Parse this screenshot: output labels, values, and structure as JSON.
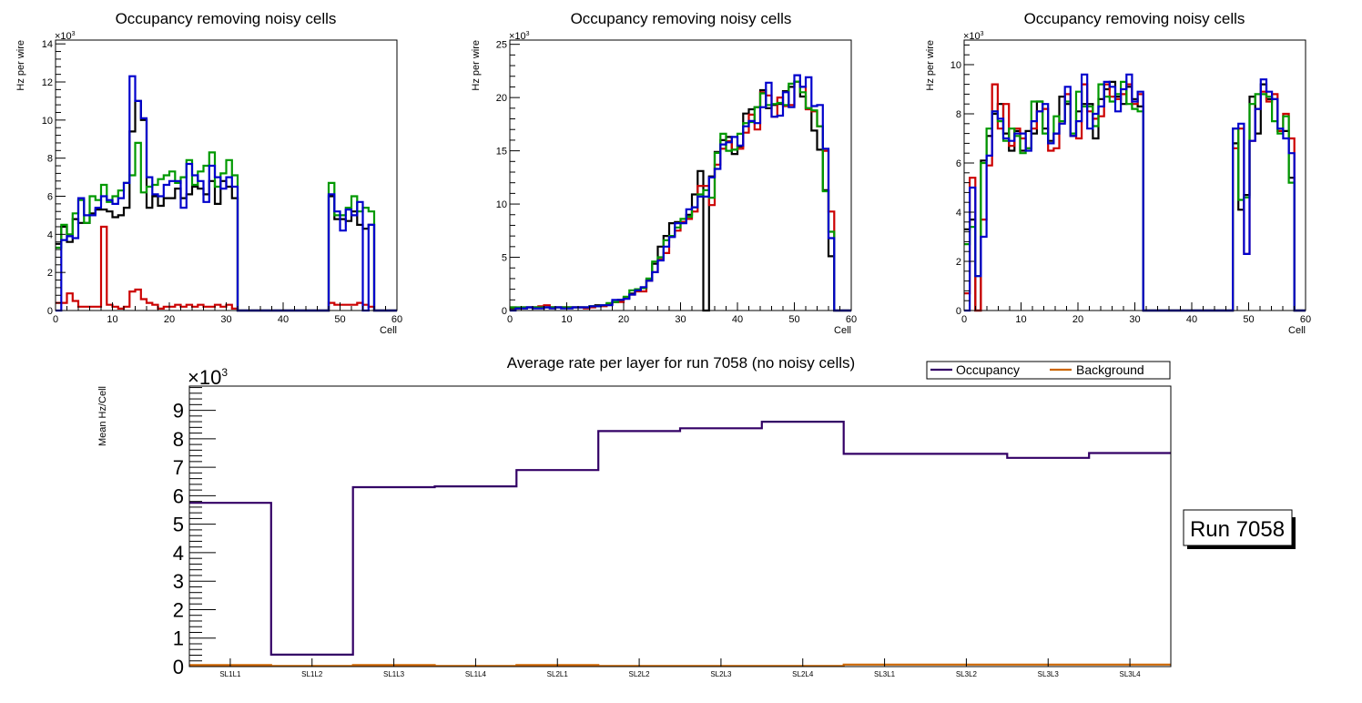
{
  "chart_data": [
    {
      "type": "line",
      "subtype": "step-histogram",
      "title": "Occupancy removing noisy cells",
      "xlabel": "Cell",
      "ylabel": "Hz per wire",
      "y_multiplier": "×10^3",
      "xlim": [
        0,
        60
      ],
      "ylim": [
        0,
        14.2
      ],
      "xticks": [
        0,
        10,
        20,
        30,
        40,
        50,
        60
      ],
      "yticks": [
        0,
        2,
        4,
        6,
        8,
        10,
        12,
        14
      ],
      "series": [
        {
          "name": "black",
          "color": "#000000",
          "values": [
            3.5,
            4.4,
            3.6,
            4.8,
            4.6,
            4.6,
            5.1,
            5.3,
            5.3,
            5.2,
            4.9,
            5.0,
            5.4,
            9.4,
            11.0,
            10.0,
            5.4,
            6.0,
            5.5,
            5.9,
            5.9,
            6.4,
            5.9,
            6.1,
            6.5,
            6.4,
            6.1,
            6.8,
            5.6,
            6.8,
            6.5,
            5.9,
            0,
            0,
            0,
            0,
            0,
            0,
            0,
            0,
            0,
            0,
            0,
            0,
            0,
            0,
            0,
            0,
            6.0,
            4.8,
            4.8,
            4.7,
            5.2,
            4.5,
            4.3,
            4.5,
            0,
            0,
            0,
            0
          ]
        },
        {
          "name": "red",
          "color": "#cc0000",
          "values": [
            0.4,
            0.4,
            0.9,
            0.5,
            0.2,
            0.2,
            0.2,
            0.2,
            4.4,
            0.3,
            0.2,
            0.1,
            0.2,
            1.0,
            1.1,
            0.6,
            0.4,
            0.3,
            0.1,
            0.2,
            0.2,
            0.3,
            0.2,
            0.3,
            0.2,
            0.3,
            0.2,
            0.2,
            0.3,
            0.2,
            0.3,
            0.1,
            0,
            0,
            0,
            0,
            0,
            0,
            0,
            0,
            0,
            0,
            0,
            0,
            0,
            0,
            0,
            0,
            0.4,
            0.3,
            0.3,
            0.3,
            0.3,
            0.4,
            0.3,
            0.2,
            0,
            0,
            0,
            0
          ]
        },
        {
          "name": "green",
          "color": "#009900",
          "values": [
            3.3,
            4.5,
            4.0,
            5.1,
            5.8,
            4.6,
            6.0,
            5.8,
            6.6,
            5.7,
            6.0,
            6.3,
            6.7,
            7.1,
            8.8,
            6.2,
            6.5,
            6.6,
            6.9,
            7.1,
            7.3,
            6.7,
            7.0,
            7.9,
            6.6,
            7.3,
            7.6,
            8.3,
            6.5,
            7.2,
            7.9,
            7.1,
            0,
            0,
            0,
            0,
            0,
            0,
            0,
            0,
            0,
            0,
            0,
            0,
            0,
            0,
            0,
            0,
            6.7,
            5.0,
            5.0,
            5.4,
            6.0,
            5.2,
            5.4,
            5.2,
            0,
            0,
            0,
            0
          ]
        },
        {
          "name": "blue",
          "color": "#0000cc",
          "values": [
            0,
            3.7,
            3.9,
            3.8,
            5.9,
            5.0,
            5.0,
            5.4,
            6.0,
            5.8,
            5.6,
            5.9,
            6.7,
            12.3,
            11.0,
            10.1,
            7.0,
            6.1,
            6.0,
            6.6,
            6.8,
            6.8,
            5.4,
            7.7,
            7.1,
            6.8,
            5.7,
            7.6,
            7.0,
            6.4,
            7.0,
            6.5,
            0,
            0,
            0,
            0,
            0,
            0,
            0,
            0,
            0,
            0,
            0,
            0,
            0,
            0,
            0,
            0,
            6.1,
            5.2,
            4.2,
            5.3,
            5.0,
            5.7,
            0,
            4.5,
            0,
            0,
            0,
            0
          ]
        }
      ]
    },
    {
      "type": "line",
      "subtype": "step-histogram",
      "title": "Occupancy removing noisy cells",
      "xlabel": "Cell",
      "ylabel": "Hz per wire",
      "y_multiplier": "×10^3",
      "xlim": [
        0,
        60
      ],
      "ylim": [
        0,
        25.4
      ],
      "xticks": [
        0,
        10,
        20,
        30,
        40,
        50,
        60
      ],
      "yticks": [
        0,
        5,
        10,
        15,
        20,
        25
      ],
      "series": [
        {
          "name": "black",
          "color": "#000000",
          "values": [
            0.2,
            0.2,
            0.2,
            0.3,
            0.3,
            0.3,
            0.3,
            0.3,
            0.3,
            0.3,
            0.3,
            0.3,
            0.3,
            0.3,
            0.4,
            0.5,
            0.5,
            0.6,
            0.8,
            1.0,
            1.2,
            1.6,
            1.9,
            2.1,
            2.9,
            4.4,
            6.0,
            7.0,
            8.2,
            8.3,
            8.3,
            9.0,
            10.9,
            13.1,
            0,
            12.6,
            14.9,
            16.0,
            16.3,
            14.7,
            15.4,
            18.5,
            18.9,
            19.1,
            20.7,
            19.0,
            19.3,
            19.4,
            20.6,
            21.0,
            21.5,
            20.1,
            19.0,
            16.9,
            15.1,
            11.3,
            5.1,
            0,
            0,
            0
          ]
        },
        {
          "name": "red",
          "color": "#cc0000",
          "values": [
            0.3,
            0.2,
            0.3,
            0.3,
            0.3,
            0.4,
            0.5,
            0.3,
            0.3,
            0.3,
            0.3,
            0.3,
            0.3,
            0.2,
            0.3,
            0.4,
            0.4,
            0.6,
            0.8,
            0.8,
            1.2,
            1.5,
            1.8,
            1.8,
            2.8,
            3.6,
            4.8,
            5.4,
            7.0,
            7.5,
            8.3,
            8.6,
            9.3,
            11.7,
            11.7,
            9.9,
            13.7,
            15.2,
            15.9,
            15.1,
            15.2,
            16.7,
            18.4,
            17.0,
            20.5,
            20.2,
            18.2,
            20.0,
            19.2,
            19.3,
            21.5,
            21.0,
            18.9,
            18.7,
            17.3,
            15.0,
            9.3,
            0,
            0,
            0
          ]
        },
        {
          "name": "green",
          "color": "#009900",
          "values": [
            0.3,
            0.3,
            0.3,
            0.3,
            0.3,
            0.3,
            0.3,
            0.3,
            0.3,
            0.3,
            0.3,
            0.3,
            0.3,
            0.3,
            0.4,
            0.4,
            0.5,
            0.7,
            0.8,
            1.0,
            1.3,
            1.9,
            2.0,
            2.1,
            3.0,
            4.6,
            5.0,
            6.6,
            7.0,
            7.8,
            8.6,
            8.8,
            9.7,
            10.9,
            11.3,
            10.6,
            14.8,
            16.6,
            15.0,
            15.1,
            16.6,
            17.6,
            17.7,
            19.1,
            20.4,
            19.3,
            19.4,
            19.5,
            19.3,
            21.3,
            21.5,
            20.5,
            19.0,
            18.8,
            17.3,
            11.2,
            7.4,
            0,
            0,
            0
          ]
        },
        {
          "name": "blue",
          "color": "#0000cc",
          "values": [
            0,
            0.2,
            0.2,
            0.3,
            0.2,
            0.2,
            0.3,
            0.2,
            0.3,
            0.2,
            0.2,
            0.3,
            0.3,
            0.3,
            0.4,
            0.4,
            0.5,
            0.5,
            1.0,
            1.0,
            1.1,
            1.5,
            1.9,
            2.2,
            2.8,
            3.6,
            4.7,
            6.0,
            6.9,
            8.2,
            8.2,
            9.5,
            9.7,
            10.7,
            10.7,
            12.5,
            13.3,
            15.6,
            15.8,
            16.3,
            15.5,
            17.3,
            17.8,
            17.6,
            19.1,
            21.4,
            18.2,
            18.3,
            20.5,
            19.1,
            22.1,
            21.0,
            21.9,
            19.2,
            19.3,
            15.2,
            6.8,
            0,
            0,
            0
          ]
        }
      ]
    },
    {
      "type": "line",
      "subtype": "step-histogram",
      "title": "Occupancy removing noisy cells",
      "xlabel": "Cell",
      "ylabel": "Hz per wire",
      "y_multiplier": "×10^3",
      "xlim": [
        0,
        60
      ],
      "ylim": [
        0,
        11.0
      ],
      "xticks": [
        0,
        10,
        20,
        30,
        40,
        50,
        60
      ],
      "yticks": [
        0,
        2,
        4,
        6,
        8,
        10
      ],
      "series": [
        {
          "name": "black",
          "color": "#000000",
          "values": [
            3.3,
            3.7,
            0,
            6.1,
            7.1,
            8.0,
            8.4,
            7.2,
            6.5,
            7.3,
            6.5,
            7.3,
            7.2,
            8.5,
            7.4,
            6.9,
            7.2,
            8.7,
            8.4,
            7.1,
            8.1,
            8.4,
            8.4,
            7.0,
            8.6,
            9.0,
            9.3,
            8.7,
            8.4,
            9.1,
            8.6,
            8.3,
            0,
            0,
            0,
            0,
            0,
            0,
            0,
            0,
            0,
            0,
            0,
            0,
            0,
            0,
            0,
            0,
            6.8,
            4.1,
            4.7,
            8.7,
            7.2,
            9.2,
            8.6,
            8.6,
            7.3,
            7.3,
            5.4,
            0,
            0
          ]
        },
        {
          "name": "red",
          "color": "#cc0000",
          "values": [
            0.7,
            5.4,
            0,
            3.7,
            5.9,
            9.2,
            7.4,
            8.4,
            6.7,
            7.4,
            7.0,
            6.6,
            7.4,
            8.1,
            8.2,
            6.5,
            6.6,
            7.7,
            8.8,
            7.1,
            7.0,
            9.2,
            8.1,
            7.8,
            7.9,
            9.2,
            8.7,
            8.6,
            8.8,
            9.2,
            8.4,
            8.8,
            0,
            0,
            0,
            0,
            0,
            0,
            0,
            0,
            0,
            0,
            0,
            0,
            0,
            0,
            0,
            0,
            6.6,
            7.4,
            2.3,
            6.9,
            8.2,
            8.9,
            8.5,
            8.8,
            7.3,
            8.0,
            7.0,
            0,
            0
          ]
        },
        {
          "name": "green",
          "color": "#009900",
          "values": [
            2.7,
            3.4,
            1.4,
            6.0,
            7.4,
            8.1,
            7.7,
            6.9,
            7.4,
            7.1,
            6.4,
            6.6,
            8.5,
            8.5,
            7.2,
            6.8,
            7.9,
            7.7,
            8.5,
            7.2,
            8.9,
            8.3,
            8.3,
            7.5,
            9.2,
            8.7,
            8.5,
            8.8,
            9.3,
            8.4,
            8.2,
            8.1,
            0,
            0,
            0,
            0,
            0,
            0,
            0,
            0,
            0,
            0,
            0,
            0,
            0,
            0,
            0,
            0,
            7.4,
            4.5,
            4.6,
            8.4,
            8.8,
            8.8,
            8.7,
            7.7,
            7.2,
            7.9,
            5.2,
            0,
            0
          ]
        },
        {
          "name": "blue",
          "color": "#0000cc",
          "values": [
            0,
            5.0,
            1.4,
            3.0,
            6.3,
            8.1,
            7.8,
            7.0,
            6.9,
            7.2,
            7.2,
            6.5,
            7.7,
            8.1,
            8.4,
            6.8,
            7.2,
            7.6,
            9.1,
            7.1,
            7.7,
            9.6,
            7.4,
            8.0,
            8.3,
            9.3,
            9.1,
            8.1,
            9.0,
            9.6,
            8.5,
            8.9,
            0,
            0,
            0,
            0,
            0,
            0,
            0,
            0,
            0,
            0,
            0,
            0,
            0,
            0,
            0,
            0,
            7.4,
            7.6,
            2.3,
            6.9,
            8.2,
            9.4,
            8.9,
            8.6,
            7.4,
            7.0,
            6.4,
            0,
            0
          ]
        }
      ]
    },
    {
      "type": "line",
      "subtype": "step-histogram",
      "title": "Average rate per layer for run 7058 (no noisy cells)",
      "xlabel": "",
      "ylabel": "Mean Hz/Cell",
      "y_multiplier": "×10^3",
      "ylim": [
        0,
        9.85
      ],
      "yticks": [
        0,
        1,
        2,
        3,
        4,
        5,
        6,
        7,
        8,
        9
      ],
      "categories": [
        "SL1L1",
        "SL1L2",
        "SL1L3",
        "SL1L4",
        "SL2L1",
        "SL2L2",
        "SL2L3",
        "SL2L4",
        "SL3L1",
        "SL3L2",
        "SL3L3",
        "SL3L4"
      ],
      "legend": {
        "position": "top-right",
        "entries": [
          "Occupancy",
          "Background"
        ]
      },
      "series": [
        {
          "name": "Occupancy",
          "color": "#330066",
          "values": [
            5.75,
            0.42,
            6.3,
            6.33,
            6.9,
            8.27,
            8.37,
            8.6,
            7.47,
            7.47,
            7.33,
            7.5
          ]
        },
        {
          "name": "Background",
          "color": "#cc6600",
          "values": [
            0.05,
            0.02,
            0.05,
            0.02,
            0.05,
            0.02,
            0.02,
            0.02,
            0.07,
            0.07,
            0.07,
            0.07
          ]
        }
      ],
      "annotation": "Run 7058"
    }
  ]
}
